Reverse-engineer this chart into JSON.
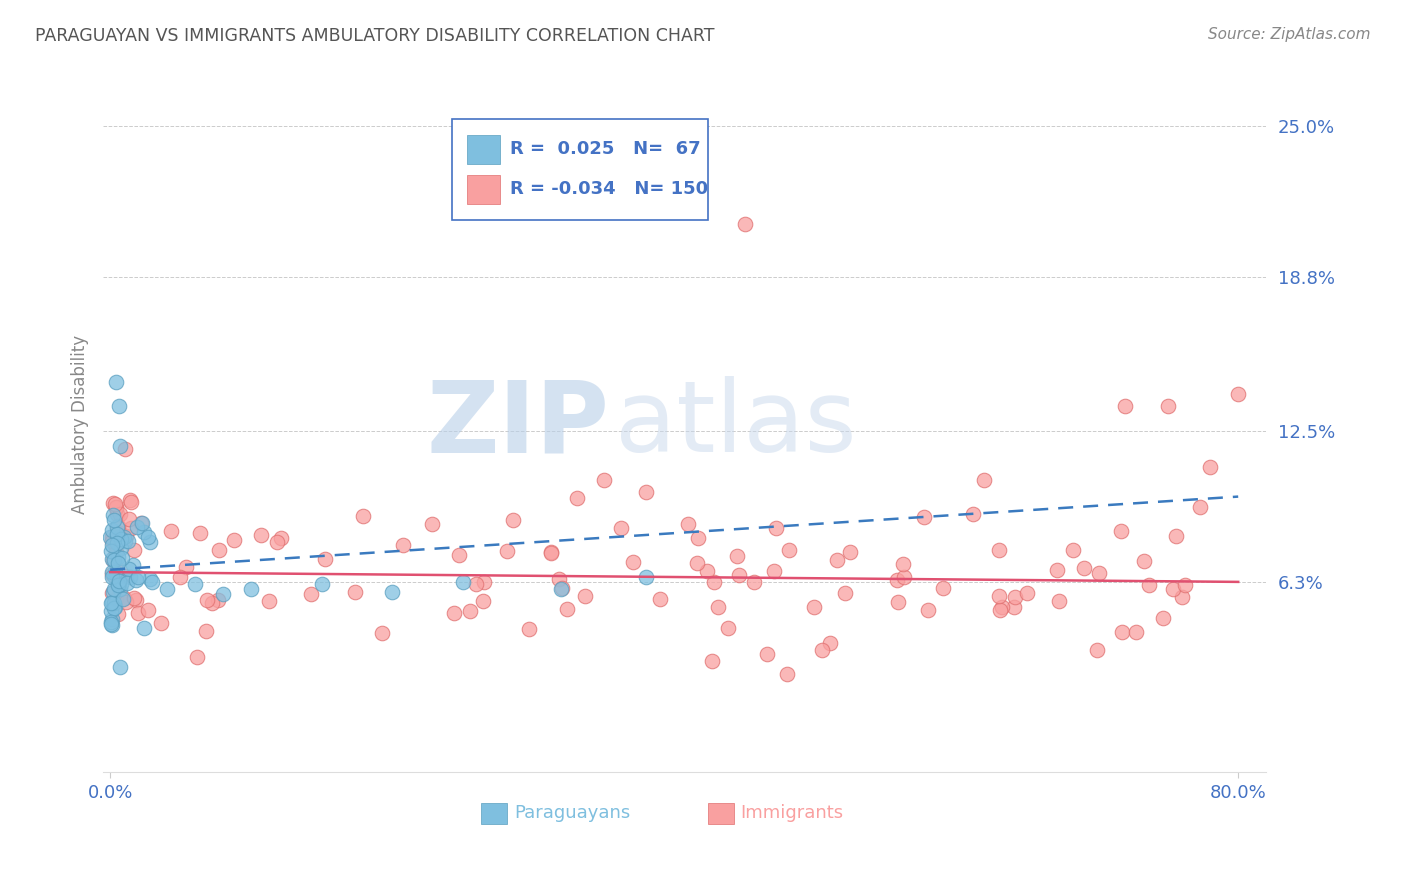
{
  "title": "PARAGUAYAN VS IMMIGRANTS AMBULATORY DISABILITY CORRELATION CHART",
  "source": "Source: ZipAtlas.com",
  "xlabel_paraguayans": "Paraguayans",
  "xlabel_immigrants": "Immigrants",
  "ylabel": "Ambulatory Disability",
  "xlim": [
    -0.005,
    0.82
  ],
  "ylim": [
    -0.015,
    0.27
  ],
  "yticks": [
    0.063,
    0.125,
    0.188,
    0.25
  ],
  "ytick_labels": [
    "6.3%",
    "12.5%",
    "18.8%",
    "25.0%"
  ],
  "xtick_labels_left": "0.0%",
  "xtick_labels_right": "80.0%",
  "paraguayan_color": "#7fbfdf",
  "paraguayan_edge_color": "#5a9fc0",
  "immigrant_color": "#f9a0a0",
  "immigrant_edge_color": "#e07070",
  "paraguayan_r": 0.025,
  "paraguayan_n": 67,
  "immigrant_r": -0.034,
  "immigrant_n": 150,
  "watermark_zip": "ZIP",
  "watermark_atlas": "atlas",
  "background_color": "#ffffff",
  "grid_color": "#cccccc",
  "title_color": "#555555",
  "axis_label_color": "#4472c4",
  "paraguayan_trend_color": "#3a7abf",
  "immigrant_trend_color": "#e05070",
  "legend_border_color": "#4472c4",
  "legend_text_color": "#4472c4"
}
